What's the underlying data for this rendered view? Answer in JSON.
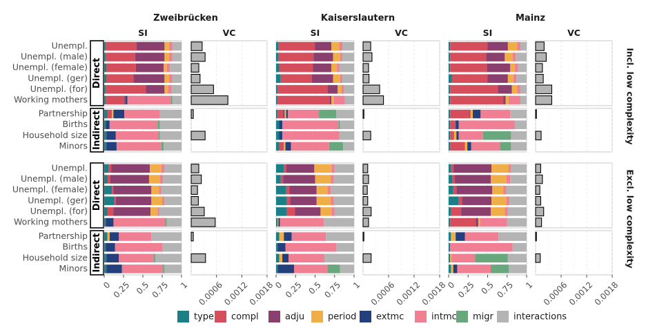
{
  "chart_data": {
    "type": "bar",
    "orientation": "horizontal",
    "stacked": true,
    "cities": [
      "Zweibrücken",
      "Kaiserslautern",
      "Mainz"
    ],
    "subpanels": [
      "SI",
      "VC"
    ],
    "row_panels": [
      "Incl. low complexity",
      "Excl. low complexity"
    ],
    "groups": [
      {
        "label": "Direct",
        "categories": [
          "Unempl.",
          "Unempl. (male)",
          "Unempl. (female)",
          "Unempl. (ger)",
          "Unempl. (for)",
          "Working mothers"
        ]
      },
      {
        "label": "Indirect",
        "categories": [
          "Partnership",
          "Births",
          "Household size",
          "Minors"
        ]
      }
    ],
    "components": [
      "type",
      "compl",
      "adju",
      "period",
      "extmc",
      "intmc",
      "migr",
      "interactions"
    ],
    "colors": {
      "type": "#1a7f86",
      "compl": "#d64d5b",
      "adju": "#8b3f6f",
      "period": "#f0ae48",
      "extmc": "#233f7c",
      "intmc": "#f07f93",
      "migr": "#69a77d",
      "interactions": "#b4b4b4"
    },
    "si_axis": {
      "ticks": [
        0,
        0.25,
        0.5,
        0.75,
        1
      ],
      "tick_labels": [
        "0",
        "0.25",
        "0.5",
        "0.75",
        "1"
      ],
      "xlim": [
        0,
        1
      ]
    },
    "vc_axis": {
      "ticks": [
        0.0006,
        0.0012,
        0.0018
      ],
      "tick_labels": [
        "0.0006",
        "0.0012",
        "0.0018"
      ],
      "xlim": [
        0,
        0.0018
      ]
    },
    "si": {
      "Incl. low complexity": {
        "Zweibrücken": [
          [
            0.02,
            0.4,
            0.36,
            0.06,
            0.0,
            0.04,
            0.0,
            0.12
          ],
          [
            0.02,
            0.38,
            0.38,
            0.06,
            0.0,
            0.04,
            0.0,
            0.12
          ],
          [
            0.03,
            0.38,
            0.36,
            0.04,
            0.0,
            0.04,
            0.0,
            0.15
          ],
          [
            0.03,
            0.35,
            0.4,
            0.06,
            0.0,
            0.04,
            0.0,
            0.12
          ],
          [
            0.02,
            0.52,
            0.24,
            0.05,
            0.0,
            0.04,
            0.0,
            0.13
          ],
          [
            0.02,
            0.24,
            0.02,
            0.0,
            0.02,
            0.56,
            0.02,
            0.12
          ],
          [
            0.04,
            0.06,
            0.0,
            0.02,
            0.14,
            0.46,
            0.0,
            0.28
          ],
          [
            0.02,
            0.0,
            0.0,
            0.0,
            0.05,
            0.62,
            0.03,
            0.28
          ],
          [
            0.03,
            0.0,
            0.0,
            0.0,
            0.12,
            0.55,
            0.02,
            0.28
          ],
          [
            0.03,
            0.0,
            0.0,
            0.0,
            0.13,
            0.58,
            0.03,
            0.23
          ]
        ],
        "Kaiserslautern": [
          [
            0.03,
            0.47,
            0.21,
            0.1,
            0.0,
            0.04,
            0.0,
            0.15
          ],
          [
            0.03,
            0.45,
            0.25,
            0.09,
            0.0,
            0.03,
            0.0,
            0.15
          ],
          [
            0.04,
            0.43,
            0.24,
            0.07,
            0.0,
            0.03,
            0.0,
            0.19
          ],
          [
            0.06,
            0.4,
            0.27,
            0.09,
            0.0,
            0.03,
            0.0,
            0.15
          ],
          [
            0.02,
            0.64,
            0.13,
            0.05,
            0.0,
            0.03,
            0.0,
            0.13
          ],
          [
            0.02,
            0.67,
            0.02,
            0.03,
            0.0,
            0.14,
            0.0,
            0.12
          ],
          [
            0.02,
            0.07,
            0.02,
            0.02,
            0.02,
            0.4,
            0.22,
            0.23
          ],
          [
            0.04,
            0.0,
            0.0,
            0.0,
            0.04,
            0.72,
            0.02,
            0.18
          ],
          [
            0.04,
            0.0,
            0.0,
            0.0,
            0.04,
            0.73,
            0.0,
            0.19
          ],
          [
            0.04,
            0.06,
            0.0,
            0.02,
            0.07,
            0.49,
            0.18,
            0.14
          ]
        ],
        "Mainz": [
          [
            0.02,
            0.48,
            0.26,
            0.12,
            0.0,
            0.04,
            0.0,
            0.08
          ],
          [
            0.02,
            0.46,
            0.24,
            0.1,
            0.0,
            0.04,
            0.0,
            0.14
          ],
          [
            0.02,
            0.47,
            0.3,
            0.06,
            0.0,
            0.04,
            0.0,
            0.11
          ],
          [
            0.04,
            0.46,
            0.26,
            0.07,
            0.0,
            0.04,
            0.0,
            0.13
          ],
          [
            0.02,
            0.61,
            0.18,
            0.07,
            0.0,
            0.04,
            0.0,
            0.08
          ],
          [
            0.02,
            0.68,
            0.03,
            0.04,
            0.0,
            0.15,
            0.0,
            0.08
          ],
          [
            0.02,
            0.25,
            0.01,
            0.03,
            0.1,
            0.38,
            0.0,
            0.21
          ],
          [
            0.02,
            0.07,
            0.0,
            0.0,
            0.04,
            0.72,
            0.0,
            0.15
          ],
          [
            0.02,
            0.05,
            0.0,
            0.03,
            0.03,
            0.31,
            0.36,
            0.2
          ],
          [
            0.02,
            0.19,
            0.0,
            0.03,
            0.05,
            0.37,
            0.14,
            0.2
          ]
        ]
      },
      "Excl. low complexity": {
        "Zweibrücken": [
          [
            0.06,
            0.03,
            0.5,
            0.15,
            0.0,
            0.04,
            0.0,
            0.22
          ],
          [
            0.04,
            0.04,
            0.5,
            0.14,
            0.0,
            0.04,
            0.0,
            0.24
          ],
          [
            0.1,
            0.02,
            0.49,
            0.1,
            0.0,
            0.03,
            0.0,
            0.26
          ],
          [
            0.13,
            0.02,
            0.46,
            0.14,
            0.0,
            0.03,
            0.0,
            0.22
          ],
          [
            0.04,
            0.08,
            0.48,
            0.09,
            0.0,
            0.02,
            0.0,
            0.29
          ],
          [
            0.02,
            0.0,
            0.0,
            0.0,
            0.1,
            0.67,
            0.02,
            0.19
          ],
          [
            0.04,
            0.0,
            0.0,
            0.03,
            0.12,
            0.42,
            0.0,
            0.39
          ],
          [
            0.02,
            0.0,
            0.0,
            0.0,
            0.12,
            0.61,
            0.0,
            0.25
          ],
          [
            0.03,
            0.0,
            0.0,
            0.0,
            0.16,
            0.45,
            0.02,
            0.34
          ],
          [
            0.03,
            0.0,
            0.0,
            0.0,
            0.2,
            0.53,
            0.02,
            0.22
          ]
        ],
        "Kaiserslautern": [
          [
            0.1,
            0.03,
            0.36,
            0.22,
            0.0,
            0.04,
            0.0,
            0.25
          ],
          [
            0.06,
            0.03,
            0.41,
            0.2,
            0.0,
            0.04,
            0.0,
            0.26
          ],
          [
            0.13,
            0.04,
            0.35,
            0.14,
            0.0,
            0.04,
            0.0,
            0.3
          ],
          [
            0.14,
            0.04,
            0.34,
            0.18,
            0.0,
            0.04,
            0.0,
            0.26
          ],
          [
            0.14,
            0.1,
            0.33,
            0.14,
            0.0,
            0.04,
            0.0,
            0.25
          ],
          [
            0.02,
            0.0,
            0.0,
            0.01,
            0.02,
            0.56,
            0.0,
            0.39
          ],
          [
            0.04,
            0.0,
            0.0,
            0.06,
            0.1,
            0.44,
            0.0,
            0.36
          ],
          [
            0.02,
            0.0,
            0.0,
            0.0,
            0.1,
            0.65,
            0.0,
            0.23
          ],
          [
            0.04,
            0.0,
            0.0,
            0.04,
            0.08,
            0.46,
            0.0,
            0.38
          ],
          [
            0.02,
            0.0,
            0.0,
            0.0,
            0.21,
            0.43,
            0.16,
            0.18
          ]
        ],
        "Mainz": [
          [
            0.03,
            0.03,
            0.49,
            0.22,
            0.0,
            0.03,
            0.0,
            0.2
          ],
          [
            0.05,
            0.03,
            0.46,
            0.2,
            0.0,
            0.05,
            0.0,
            0.21
          ],
          [
            0.06,
            0.04,
            0.46,
            0.14,
            0.0,
            0.04,
            0.0,
            0.26
          ],
          [
            0.13,
            0.04,
            0.38,
            0.19,
            0.0,
            0.04,
            0.0,
            0.22
          ],
          [
            0.03,
            0.13,
            0.38,
            0.18,
            0.0,
            0.04,
            0.0,
            0.24
          ],
          [
            0.02,
            0.33,
            0.03,
            0.02,
            0.0,
            0.35,
            0.0,
            0.25
          ],
          [
            0.03,
            0.0,
            0.0,
            0.06,
            0.12,
            0.43,
            0.0,
            0.36
          ],
          [
            0.02,
            0.0,
            0.0,
            0.0,
            0.0,
            0.8,
            0.0,
            0.18
          ],
          [
            0.02,
            0.0,
            0.0,
            0.02,
            0.0,
            0.3,
            0.42,
            0.24
          ],
          [
            0.03,
            0.0,
            0.0,
            0.03,
            0.05,
            0.43,
            0.23,
            0.23
          ]
        ]
      }
    },
    "vc": {
      "Incl. low complexity": {
        "Zweibrücken": [
          0.00026,
          0.00033,
          0.00018,
          0.00021,
          0.00053,
          0.00087,
          5e-05,
          0.0,
          0.00033,
          0.0
        ],
        "Kaiserslautern": [
          0.00018,
          0.00021,
          0.00013,
          0.00014,
          0.00039,
          0.00048,
          2e-05,
          0.0,
          0.00018,
          0.0
        ],
        "Mainz": [
          0.0002,
          0.00025,
          0.00016,
          0.00018,
          0.00038,
          0.00038,
          2e-05,
          0.0,
          0.00013,
          0.0
        ]
      },
      "Excl. low complexity": {
        "Zweibrücken": [
          0.00018,
          0.00024,
          0.00015,
          0.00017,
          0.00031,
          0.00057,
          5e-05,
          0.0,
          0.00034,
          0.0
        ],
        "Kaiserslautern": [
          0.00011,
          0.00013,
          0.0001,
          0.00011,
          0.00019,
          0.00013,
          2e-05,
          0.0,
          0.00019,
          0.0
        ],
        "Mainz": [
          0.00012,
          0.00016,
          0.0001,
          0.00012,
          0.00019,
          0.00014,
          2e-05,
          0.0,
          0.00011,
          0.0
        ]
      }
    }
  }
}
